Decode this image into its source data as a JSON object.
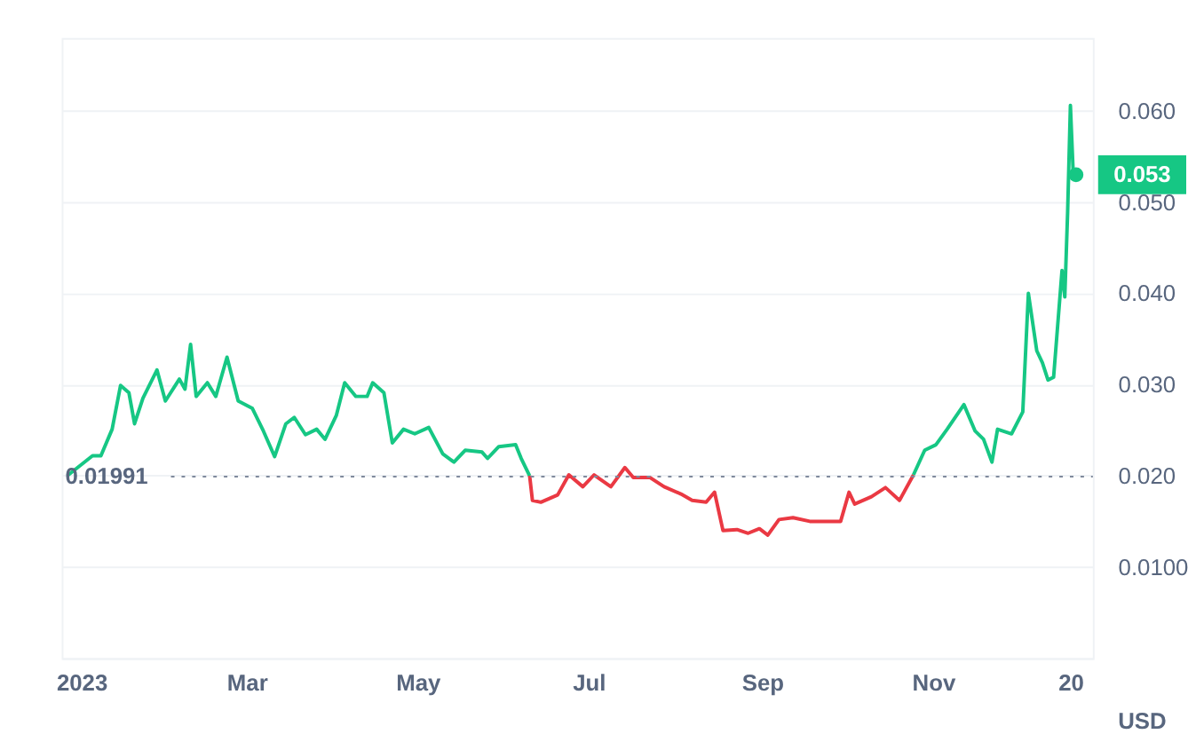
{
  "chart_data": {
    "type": "line",
    "ylabel": "USD",
    "xlim": [
      "2022-12-25",
      "2023-12-28"
    ],
    "xticks": [
      {
        "value": "2023-01-01",
        "label": "2023"
      },
      {
        "value": "2023-03-01",
        "label": "Mar"
      },
      {
        "value": "2023-05-01",
        "label": "May"
      },
      {
        "value": "2023-07-01",
        "label": "Jul"
      },
      {
        "value": "2023-09-01",
        "label": "Sep"
      },
      {
        "value": "2023-11-01",
        "label": "Nov"
      },
      {
        "value": "2023-12-20",
        "label": "20"
      }
    ],
    "ylim": [
      0,
      0.068
    ],
    "yticks": [
      {
        "value": 0.01,
        "label": "0.0100"
      },
      {
        "value": 0.02,
        "label": "0.020"
      },
      {
        "value": 0.03,
        "label": "0.030"
      },
      {
        "value": 0.04,
        "label": "0.040"
      },
      {
        "value": 0.05,
        "label": "0.050"
      },
      {
        "value": 0.06,
        "label": "0.060"
      }
    ],
    "grid": "y",
    "line_style": "solid",
    "series": [
      {
        "color": "#16c784",
        "x": [
          "2022-12-27",
          "2023-01-05",
          "2023-01-08",
          "2023-01-12",
          "2023-01-15",
          "2023-01-18",
          "2023-01-20",
          "2023-01-23",
          "2023-01-28",
          "2023-01-31",
          "2023-02-05",
          "2023-02-07",
          "2023-02-09",
          "2023-02-11",
          "2023-02-15",
          "2023-02-18",
          "2023-02-22",
          "2023-02-26",
          "2023-03-03",
          "2023-03-07",
          "2023-03-11",
          "2023-03-15",
          "2023-03-18",
          "2023-03-22",
          "2023-03-26",
          "2023-03-29",
          "2023-04-02",
          "2023-04-05",
          "2023-04-09",
          "2023-04-13",
          "2023-04-15",
          "2023-04-19",
          "2023-04-22",
          "2023-04-26",
          "2023-04-30",
          "2023-05-05",
          "2023-05-10",
          "2023-05-14",
          "2023-05-18",
          "2023-05-24",
          "2023-05-26",
          "2023-05-30",
          "2023-06-05",
          "2023-06-07",
          "2023-06-10"
        ],
        "values": [
          0.02,
          0.0222,
          0.0222,
          0.0251,
          0.0299,
          0.0291,
          0.0257,
          0.0285,
          0.0316,
          0.0282,
          0.0306,
          0.0295,
          0.0344,
          0.0287,
          0.0302,
          0.0287,
          0.033,
          0.0282,
          0.0274,
          0.0249,
          0.0221,
          0.0257,
          0.0264,
          0.0245,
          0.0251,
          0.024,
          0.0266,
          0.0302,
          0.0287,
          0.0287,
          0.0302,
          0.0291,
          0.0236,
          0.0251,
          0.0246,
          0.0253,
          0.0224,
          0.0215,
          0.0228,
          0.0226,
          0.0219,
          0.0232,
          0.0234,
          0.0219,
          0.02
        ]
      },
      {
        "color": "#ea3943",
        "x": [
          "2023-06-10",
          "2023-06-11",
          "2023-06-14",
          "2023-06-20",
          "2023-06-24",
          "2023-06-29",
          "2023-07-03",
          "2023-07-09",
          "2023-07-14",
          "2023-07-17",
          "2023-07-23",
          "2023-07-28",
          "2023-08-03",
          "2023-08-07",
          "2023-08-12",
          "2023-08-15",
          "2023-08-18",
          "2023-08-23",
          "2023-08-27",
          "2023-08-31",
          "2023-09-03",
          "2023-09-07",
          "2023-09-12",
          "2023-09-18",
          "2023-09-23",
          "2023-09-29",
          "2023-10-02",
          "2023-10-04",
          "2023-10-10",
          "2023-10-15",
          "2023-10-20",
          "2023-10-25"
        ],
        "values": [
          0.02,
          0.0173,
          0.0171,
          0.0179,
          0.0201,
          0.0188,
          0.0201,
          0.0188,
          0.0209,
          0.0198,
          0.0198,
          0.0188,
          0.018,
          0.0173,
          0.0171,
          0.0182,
          0.014,
          0.0141,
          0.0137,
          0.0142,
          0.0135,
          0.0152,
          0.0154,
          0.015,
          0.015,
          0.015,
          0.0182,
          0.0169,
          0.0177,
          0.0187,
          0.0173,
          0.0201
        ]
      },
      {
        "color": "#16c784",
        "x": [
          "2023-10-25",
          "2023-10-29",
          "2023-11-02",
          "2023-11-06",
          "2023-11-12",
          "2023-11-16",
          "2023-11-19",
          "2023-11-22",
          "2023-11-24",
          "2023-11-29",
          "2023-12-03",
          "2023-12-05",
          "2023-12-08",
          "2023-12-10",
          "2023-12-12",
          "2023-12-14",
          "2023-12-17",
          "2023-12-18",
          "2023-12-19",
          "2023-12-20",
          "2023-12-21",
          "2023-12-22"
        ],
        "values": [
          0.0201,
          0.0228,
          0.0234,
          0.0251,
          0.0278,
          0.0249,
          0.024,
          0.0215,
          0.0251,
          0.0246,
          0.027,
          0.04,
          0.0337,
          0.0324,
          0.0305,
          0.0308,
          0.0425,
          0.0396,
          0.0488,
          0.0606,
          0.0532,
          0.053
        ]
      }
    ],
    "ref_lines": [
      {
        "axis": "y",
        "value": 0.01991,
        "label": "0.01991",
        "line_style": "dotted",
        "color": "#808a9d"
      }
    ],
    "annotations": [
      {
        "text": "0.053",
        "x": "2023-12-22",
        "y": 0.053
      }
    ]
  }
}
